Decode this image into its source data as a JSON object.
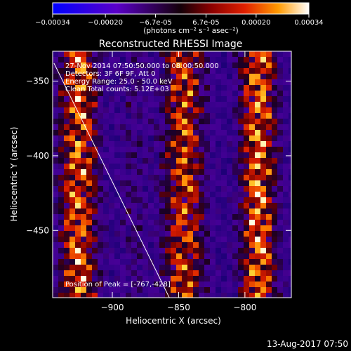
{
  "chart_data": {
    "type": "heatmap",
    "title": "Reconstructed RHESSI Image",
    "colorbar": {
      "colormap": "blue-purple-red-yellow-white",
      "tick_labels": [
        "-0.00034",
        "-0.00020",
        "-6.7e-05",
        "6.7e-05",
        "0.00020",
        "0.00034"
      ],
      "range": [
        -0.00034,
        0.00034
      ],
      "units_label": "(photons cm⁻² s⁻¹ asec⁻²)"
    },
    "xlabel": "Heliocentric X (arcsec)",
    "ylabel": "Heliocentric Y (arcsec)",
    "xlim": [
      -945,
      -765
    ],
    "ylim": [
      -495,
      -330
    ],
    "xticks": [
      {
        "value": -900,
        "label": "−900"
      },
      {
        "value": -850,
        "label": "−850"
      },
      {
        "value": -800,
        "label": "−800"
      }
    ],
    "yticks": [
      {
        "value": -350,
        "label": "−350"
      },
      {
        "value": -400,
        "label": "−400"
      },
      {
        "value": -450,
        "label": "−450"
      }
    ],
    "annotations": [
      "27-Nov-2014 07:50:50.000 to 08:00:50.000",
      "Detectors: 3F 6F 9F, Att 0",
      "Energy Range: 25.0 - 50.0 keV",
      "Clean    Total counts: 5.12E+03"
    ],
    "peak_label": "Position of Peak = [-767,-428]",
    "peak": {
      "x": -767,
      "y": -428
    },
    "limb_line": [
      {
        "x": -944,
        "y": -338
      },
      {
        "x": -857,
        "y": -495
      }
    ],
    "timestamp": "13-Aug-2017 07:50"
  }
}
